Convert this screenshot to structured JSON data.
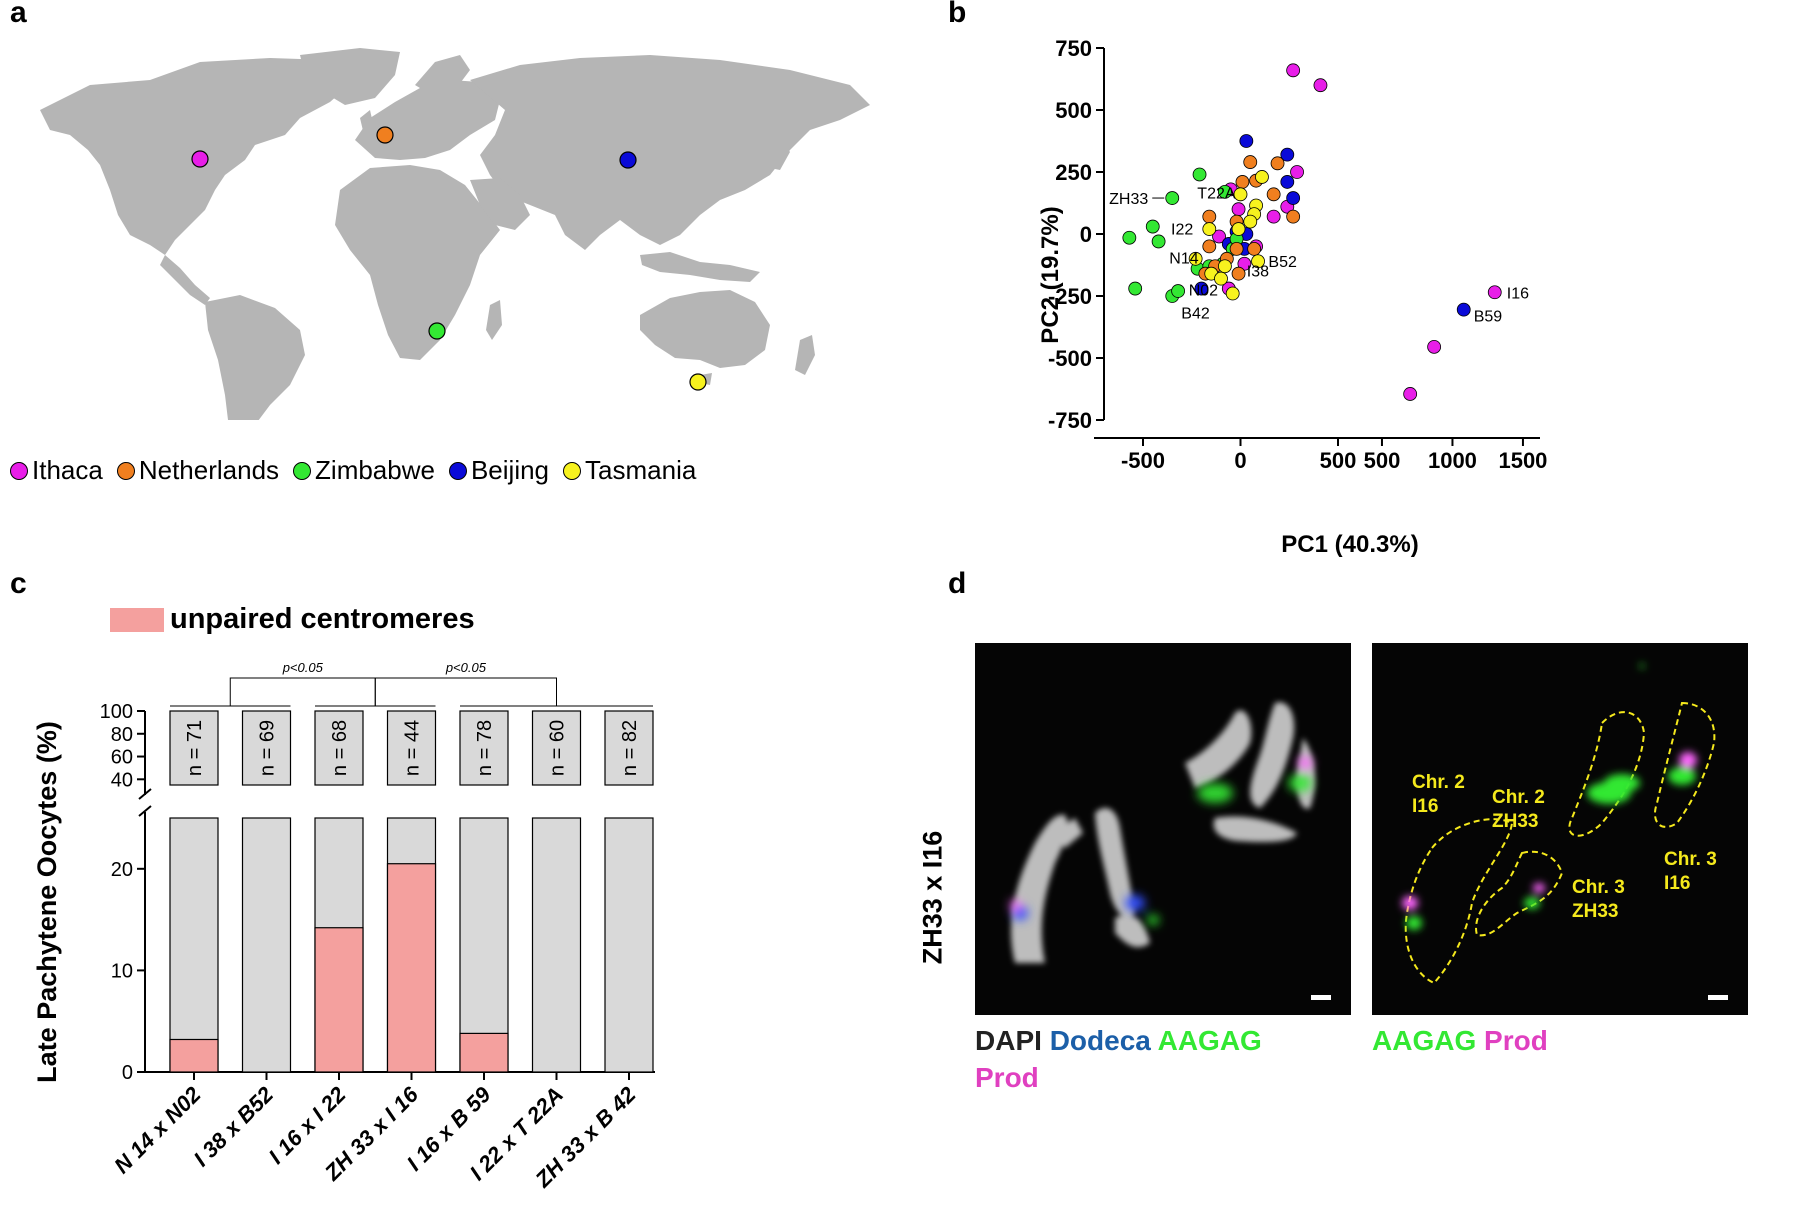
{
  "panel_labels": {
    "a": "a",
    "b": "b",
    "c": "c",
    "d": "d"
  },
  "panel_a": {
    "legend": [
      {
        "label": "Ithaca",
        "color": "#e81ee8"
      },
      {
        "label": "Netherlands",
        "color": "#f07f1f"
      },
      {
        "label": "Zimbabwe",
        "color": "#33e833"
      },
      {
        "label": "Beijing",
        "color": "#0a0ad8"
      },
      {
        "label": "Tasmania",
        "color": "#f7f21e"
      }
    ],
    "map_points": [
      {
        "location": "Ithaca",
        "color": "#e81ee8"
      },
      {
        "location": "Netherlands",
        "color": "#f07f1f"
      },
      {
        "location": "Zimbabwe",
        "color": "#33e833"
      },
      {
        "location": "Beijing",
        "color": "#0a0ad8"
      },
      {
        "location": "Tasmania",
        "color": "#f7f21e"
      }
    ]
  },
  "chart_data": [
    {
      "panel": "b",
      "type": "scatter",
      "xlabel": "PC1 (40.3%)",
      "ylabel": "PC2 (19.7%)",
      "ylim": [
        -750,
        750
      ],
      "x_segments": [
        {
          "range": [
            -700,
            500
          ],
          "ticks": [
            -500,
            0,
            500
          ]
        },
        {
          "range": [
            330,
            1550
          ],
          "ticks": [
            500,
            1000,
            1500
          ]
        }
      ],
      "yticks": [
        750,
        500,
        250,
        0,
        -250,
        -500,
        -750
      ],
      "colors": {
        "Ithaca": "#e81ee8",
        "Netherlands": "#f07f1f",
        "Zimbabwe": "#33e833",
        "Beijing": "#0a0ad8",
        "Tasmania": "#f7f21e"
      },
      "points": [
        {
          "x": 270,
          "y": 660,
          "group": "Ithaca"
        },
        {
          "x": 410,
          "y": 600,
          "group": "Ithaca"
        },
        {
          "x": 290,
          "y": 250,
          "group": "Ithaca"
        },
        {
          "x": 240,
          "y": 110,
          "group": "Ithaca"
        },
        {
          "x": 170,
          "y": 70,
          "group": "Ithaca"
        },
        {
          "x": -50,
          "y": 180,
          "group": "Ithaca"
        },
        {
          "x": 80,
          "y": -50,
          "group": "Ithaca"
        },
        {
          "x": 20,
          "y": -120,
          "group": "Ithaca"
        },
        {
          "x": -60,
          "y": -220,
          "group": "Ithaca"
        },
        {
          "x": -110,
          "y": -10,
          "group": "Ithaca"
        },
        {
          "x": -10,
          "y": 100,
          "group": "Ithaca"
        },
        {
          "x": 1300,
          "y": -235,
          "group": "Ithaca"
        },
        {
          "x": 870,
          "y": -455,
          "group": "Ithaca"
        },
        {
          "x": 700,
          "y": -645,
          "group": "Ithaca"
        },
        {
          "x": 30,
          "y": 375,
          "group": "Beijing"
        },
        {
          "x": 240,
          "y": 320,
          "group": "Beijing"
        },
        {
          "x": 270,
          "y": 145,
          "group": "Beijing"
        },
        {
          "x": 240,
          "y": 210,
          "group": "Beijing"
        },
        {
          "x": -60,
          "y": -40,
          "group": "Beijing"
        },
        {
          "x": 20,
          "y": -60,
          "group": "Beijing"
        },
        {
          "x": -20,
          "y": 10,
          "group": "Beijing"
        },
        {
          "x": -200,
          "y": -220,
          "group": "Beijing"
        },
        {
          "x": 30,
          "y": 0,
          "group": "Beijing"
        },
        {
          "x": 1080,
          "y": -305,
          "group": "Beijing"
        },
        {
          "x": -210,
          "y": 240,
          "group": "Zimbabwe"
        },
        {
          "x": -350,
          "y": 145,
          "group": "Zimbabwe"
        },
        {
          "x": -450,
          "y": 30,
          "group": "Zimbabwe"
        },
        {
          "x": -420,
          "y": -30,
          "group": "Zimbabwe"
        },
        {
          "x": -570,
          "y": -15,
          "group": "Zimbabwe"
        },
        {
          "x": -540,
          "y": -220,
          "group": "Zimbabwe"
        },
        {
          "x": -350,
          "y": -250,
          "group": "Zimbabwe"
        },
        {
          "x": -320,
          "y": -230,
          "group": "Zimbabwe"
        },
        {
          "x": -220,
          "y": -140,
          "group": "Zimbabwe"
        },
        {
          "x": -160,
          "y": -130,
          "group": "Zimbabwe"
        },
        {
          "x": -90,
          "y": -120,
          "group": "Zimbabwe"
        },
        {
          "x": -80,
          "y": 170,
          "group": "Zimbabwe"
        },
        {
          "x": -40,
          "y": -60,
          "group": "Zimbabwe"
        },
        {
          "x": -20,
          "y": -20,
          "group": "Zimbabwe"
        },
        {
          "x": 50,
          "y": 290,
          "group": "Netherlands"
        },
        {
          "x": 190,
          "y": 285,
          "group": "Netherlands"
        },
        {
          "x": 10,
          "y": 210,
          "group": "Netherlands"
        },
        {
          "x": 80,
          "y": 215,
          "group": "Netherlands"
        },
        {
          "x": 170,
          "y": 160,
          "group": "Netherlands"
        },
        {
          "x": 270,
          "y": 70,
          "group": "Netherlands"
        },
        {
          "x": -160,
          "y": 70,
          "group": "Netherlands"
        },
        {
          "x": -20,
          "y": 50,
          "group": "Netherlands"
        },
        {
          "x": -160,
          "y": -50,
          "group": "Netherlands"
        },
        {
          "x": -20,
          "y": -60,
          "group": "Netherlands"
        },
        {
          "x": 70,
          "y": -60,
          "group": "Netherlands"
        },
        {
          "x": -70,
          "y": -100,
          "group": "Netherlands"
        },
        {
          "x": -130,
          "y": -130,
          "group": "Netherlands"
        },
        {
          "x": -180,
          "y": -160,
          "group": "Netherlands"
        },
        {
          "x": -10,
          "y": -160,
          "group": "Netherlands"
        },
        {
          "x": 0,
          "y": 160,
          "group": "Tasmania"
        },
        {
          "x": 110,
          "y": 230,
          "group": "Tasmania"
        },
        {
          "x": 80,
          "y": 115,
          "group": "Tasmania"
        },
        {
          "x": 70,
          "y": 80,
          "group": "Tasmania"
        },
        {
          "x": 50,
          "y": 50,
          "group": "Tasmania"
        },
        {
          "x": -10,
          "y": 20,
          "group": "Tasmania"
        },
        {
          "x": -160,
          "y": 20,
          "group": "Tasmania"
        },
        {
          "x": -230,
          "y": -100,
          "group": "Tasmania"
        },
        {
          "x": -150,
          "y": -160,
          "group": "Tasmania"
        },
        {
          "x": -100,
          "y": -180,
          "group": "Tasmania"
        },
        {
          "x": 90,
          "y": -110,
          "group": "Tasmania"
        },
        {
          "x": -40,
          "y": -240,
          "group": "Tasmania"
        },
        {
          "x": -80,
          "y": -130,
          "group": "Tasmania"
        }
      ],
      "annotations": [
        {
          "text": "ZH33",
          "x": -350,
          "y": 145
        },
        {
          "text": "T22A",
          "x": -160,
          "y": 70
        },
        {
          "text": "I22",
          "x": -110,
          "y": -10
        },
        {
          "text": "N14",
          "x": -160,
          "y": -50
        },
        {
          "text": "B52",
          "x": 20,
          "y": -60
        },
        {
          "text": "I38",
          "x": -60,
          "y": -220
        },
        {
          "text": "N02",
          "x": -180,
          "y": -160
        },
        {
          "text": "B42",
          "x": -200,
          "y": -220
        },
        {
          "text": "I16",
          "x": 1300,
          "y": -235
        },
        {
          "text": "B59",
          "x": 1080,
          "y": -305
        }
      ]
    },
    {
      "panel": "c",
      "type": "bar",
      "ylabel": "Late Pachytene Oocytes (%)",
      "legend": [
        "unpaired centromeres"
      ],
      "categories": [
        "N 14 x N02",
        "I 38 x B52",
        "I 16 x I 22",
        "ZH 33 x I 16",
        "I 16 x B 59",
        "I 22 x T 22A",
        "ZH 33 x B 42"
      ],
      "series": [
        {
          "name": "unpaired centromeres",
          "values": [
            3.2,
            0,
            14.2,
            20.5,
            3.8,
            0,
            0
          ],
          "color": "#f4a09e"
        }
      ],
      "total": 100,
      "n_labels": [
        "n = 71",
        "n = 69",
        "n = 68",
        "n = 44",
        "n = 78",
        "n = 60",
        "n = 82"
      ],
      "lower_ticks": [
        0,
        10,
        20
      ],
      "upper_ticks": [
        40,
        60,
        80,
        100
      ],
      "significance": [
        {
          "text": "p<0.05",
          "groups": [
            [
              0,
              1
            ],
            [
              2,
              3
            ]
          ]
        },
        {
          "text": "p<0.05",
          "groups": [
            [
              2,
              3
            ],
            [
              4,
              5,
              6
            ]
          ]
        }
      ]
    }
  ],
  "panel_d": {
    "side_label": "ZH33 x I16",
    "left_legend": [
      {
        "text": "DAPI",
        "color": "#222222"
      },
      {
        "text": "Dodeca",
        "color": "#1c5fa8"
      },
      {
        "text": "AAGAG",
        "color": "#33e833"
      },
      {
        "text": "Prod",
        "color": "#e040c0"
      }
    ],
    "right_legend": [
      {
        "text": "AAGAG",
        "color": "#33e833"
      },
      {
        "text": "Prod",
        "color": "#e040c0"
      }
    ],
    "chr_labels": [
      {
        "line1": "Chr. 2",
        "line2": "I16"
      },
      {
        "line1": "Chr. 2",
        "line2": "ZH33"
      },
      {
        "line1": "Chr. 3",
        "line2": "ZH33"
      },
      {
        "line1": "Chr. 3",
        "line2": "I16"
      }
    ],
    "label_color": "#f5e91c"
  }
}
